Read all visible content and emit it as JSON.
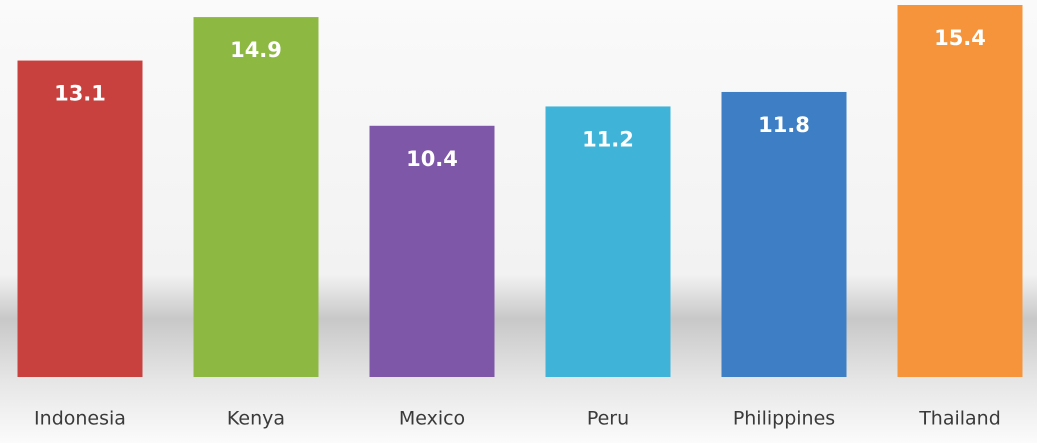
{
  "chart_data": {
    "type": "bar",
    "categories": [
      "Indonesia",
      "Kenya",
      "Mexico",
      "Peru",
      "Philippines",
      "Thailand"
    ],
    "values": [
      13.1,
      14.9,
      10.4,
      11.2,
      11.8,
      15.4
    ],
    "colors": [
      "#c9413f",
      "#8db842",
      "#7e57a8",
      "#3fb4d8",
      "#3e7ec4",
      "#f5943a"
    ]
  }
}
